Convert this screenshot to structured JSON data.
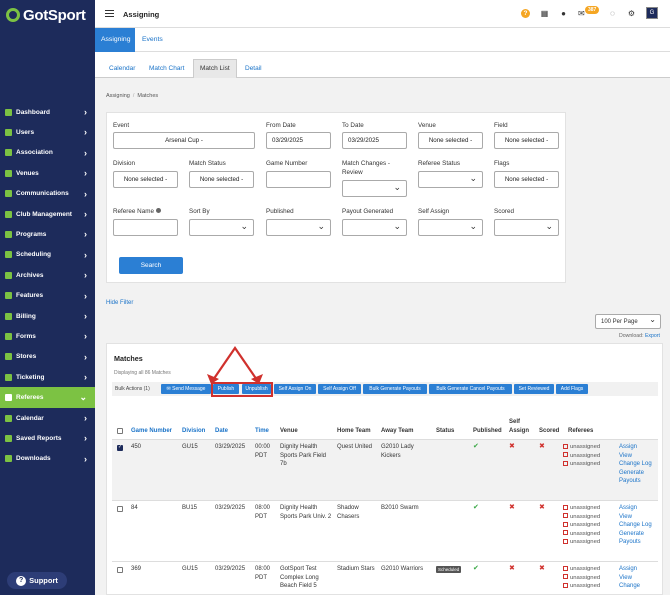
{
  "brand": {
    "name": "GotSport"
  },
  "sidebar": {
    "items": [
      {
        "label": "Dashboard"
      },
      {
        "label": "Users"
      },
      {
        "label": "Association"
      },
      {
        "label": "Venues"
      },
      {
        "label": "Communications"
      },
      {
        "label": "Club Management"
      },
      {
        "label": "Programs"
      },
      {
        "label": "Scheduling"
      },
      {
        "label": "Archives"
      },
      {
        "label": "Features"
      },
      {
        "label": "Billing"
      },
      {
        "label": "Forms"
      },
      {
        "label": "Stores"
      },
      {
        "label": "Ticketing"
      },
      {
        "label": "Referees"
      },
      {
        "label": "Calendar"
      },
      {
        "label": "Saved Reports"
      },
      {
        "label": "Downloads"
      }
    ],
    "active_index": 14,
    "support_label": "Support"
  },
  "topbar": {
    "title": "Assigning",
    "mail_count": "387",
    "avatar_letter": "G"
  },
  "tabs_primary": [
    {
      "label": "Assigning"
    },
    {
      "label": "Events"
    }
  ],
  "tabs_secondary": [
    {
      "label": "Calendar"
    },
    {
      "label": "Match Chart"
    },
    {
      "label": "Match List"
    },
    {
      "label": "Detail"
    }
  ],
  "breadcrumb": {
    "items": [
      "Assigning",
      "Matches"
    ]
  },
  "filters": {
    "event": {
      "label": "Event",
      "value": "Arsenal Cup -"
    },
    "from_date": {
      "label": "From Date",
      "value": "03/29/2025"
    },
    "to_date": {
      "label": "To Date",
      "value": "03/29/2025"
    },
    "venue": {
      "label": "Venue",
      "value": "None selected -"
    },
    "field": {
      "label": "Field",
      "value": "None selected -"
    },
    "division": {
      "label": "Division",
      "value": "None selected -"
    },
    "match_status": {
      "label": "Match Status",
      "value": "None selected -"
    },
    "game_number": {
      "label": "Game Number",
      "value": ""
    },
    "match_changes": {
      "label": "Match Changes - Review",
      "value": ""
    },
    "referee_status": {
      "label": "Referee Status",
      "value": ""
    },
    "flags": {
      "label": "Flags",
      "value": "None selected -"
    },
    "referee_name": {
      "label": "Referee Name",
      "value": ""
    },
    "sort_by": {
      "label": "Sort By",
      "value": ""
    },
    "published": {
      "label": "Published",
      "value": ""
    },
    "payout_generated": {
      "label": "Payout Generated",
      "value": ""
    },
    "self_assign": {
      "label": "Self Assign",
      "value": ""
    },
    "scored": {
      "label": "Scored",
      "value": ""
    },
    "search_label": "Search"
  },
  "hide_filter_label": "Hide Filter",
  "per_page": {
    "value": "100 Per Page"
  },
  "download": {
    "label": "Download:",
    "link": "Export"
  },
  "matches": {
    "title": "Matches",
    "subtitle": "Displaying all 86 Matches",
    "bulk_label": "Bulk Actions (1)",
    "bulk_buttons": [
      {
        "label": "✉ Send Message"
      },
      {
        "label": "Publish"
      },
      {
        "label": "Unpublish"
      },
      {
        "label": "Self Assign On"
      },
      {
        "label": "Self Assign Off"
      },
      {
        "label": "Bulk Generate Payouts"
      },
      {
        "label": "Bulk Generate Cancel Payouts"
      },
      {
        "label": "Set Reviewed"
      },
      {
        "label": "Add Flags"
      }
    ],
    "columns": {
      "game_number": "Game Number",
      "division": "Division",
      "date": "Date",
      "time": "Time",
      "venue": "Venue",
      "home": "Home Team",
      "away": "Away Team",
      "status": "Status",
      "published": "Published",
      "self_assign": "Self Assign",
      "scored": "Scored",
      "referees": "Referees"
    },
    "rows": [
      {
        "game": "450",
        "division": "GU15",
        "date": "03/29/2025",
        "time": "00:00 PDT",
        "venue": "Dignity Health Sports Park Field 7b",
        "home": "Quest United",
        "away": "G2010 Lady Kickers",
        "status": "",
        "selected": true,
        "referees": [
          "unassigned",
          "unassigned",
          "unassigned"
        ],
        "actions": [
          "Assign",
          "View",
          "Change Log",
          "Generate Payouts"
        ]
      },
      {
        "game": "84",
        "division": "BU15",
        "date": "03/29/2025",
        "time": "08:00 PDT",
        "venue": "Dignity Health Sports Park Univ. 2",
        "home": "Shadow Chasers",
        "away": "B2010 Swarm",
        "status": "",
        "selected": false,
        "referees": [
          "unassigned",
          "unassigned",
          "unassigned",
          "unassigned",
          "unassigned"
        ],
        "actions": [
          "Assign",
          "View",
          "Change Log",
          "Generate Payouts"
        ]
      },
      {
        "game": "369",
        "division": "GU15",
        "date": "03/29/2025",
        "time": "08:00 PDT",
        "venue": "GotSport Test Complex Long Beach Field 5",
        "home": "Stadium Stars",
        "away": "G2010 Warriors",
        "status": "Scheduled",
        "selected": false,
        "referees": [
          "unassigned",
          "unassigned",
          "unassigned",
          "unassigned"
        ],
        "actions": [
          "Assign",
          "View",
          "Change"
        ]
      }
    ]
  },
  "colors": {
    "sidebar": "#1d2b5b",
    "accent": "#7cc243",
    "primary": "#2b7fd4",
    "highlight": "#d0312d"
  }
}
